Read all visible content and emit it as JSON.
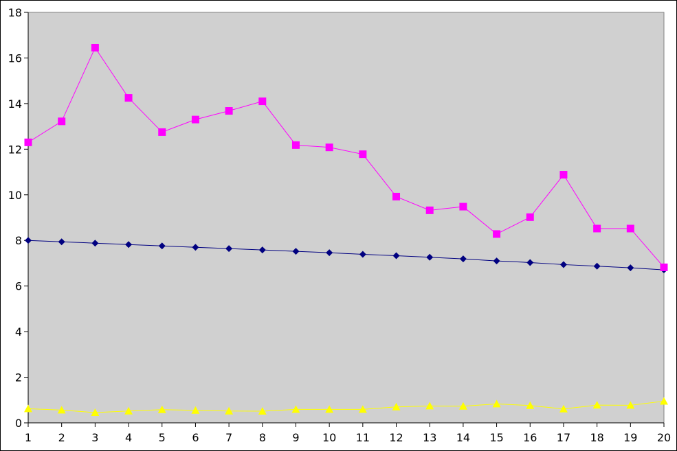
{
  "chart_data": {
    "type": "line",
    "title": "",
    "xlabel": "",
    "ylabel": "",
    "x": [
      1,
      2,
      3,
      4,
      5,
      6,
      7,
      8,
      9,
      10,
      11,
      12,
      13,
      14,
      15,
      16,
      17,
      18,
      19,
      20
    ],
    "xlim": [
      1,
      20
    ],
    "ylim": [
      0,
      18
    ],
    "y_ticks": [
      0,
      2,
      4,
      6,
      8,
      10,
      12,
      14,
      16,
      18
    ],
    "x_tick_labels": [
      "1",
      "2",
      "3",
      "4",
      "5",
      "6",
      "7",
      "8",
      "9",
      "10",
      "11",
      "12",
      "13",
      "14",
      "15",
      "16",
      "17",
      "18",
      "19",
      "20"
    ],
    "y_tick_labels": [
      "0",
      "2",
      "4",
      "6",
      "8",
      "10",
      "12",
      "14",
      "16",
      "18"
    ],
    "grid": false,
    "legend": "none",
    "plot_background": "#d0d0d0",
    "series": [
      {
        "marker": "diamond",
        "color": "#000080",
        "values": [
          8.0,
          7.94,
          7.88,
          7.82,
          7.76,
          7.7,
          7.64,
          7.58,
          7.52,
          7.46,
          7.39,
          7.33,
          7.26,
          7.19,
          7.1,
          7.03,
          6.94,
          6.87,
          6.8,
          6.71
        ]
      },
      {
        "marker": "square",
        "color": "#ff00ff",
        "values": [
          12.3,
          13.22,
          16.45,
          14.25,
          12.75,
          13.3,
          13.68,
          14.1,
          12.18,
          12.08,
          11.78,
          9.92,
          9.32,
          9.48,
          8.28,
          9.02,
          10.88,
          8.52,
          8.52,
          6.82
        ]
      },
      {
        "marker": "triangle",
        "color": "#ffff00",
        "values": [
          0.62,
          0.56,
          0.45,
          0.52,
          0.58,
          0.55,
          0.52,
          0.51,
          0.59,
          0.59,
          0.59,
          0.7,
          0.74,
          0.73,
          0.83,
          0.76,
          0.61,
          0.78,
          0.77,
          0.95
        ]
      }
    ]
  }
}
